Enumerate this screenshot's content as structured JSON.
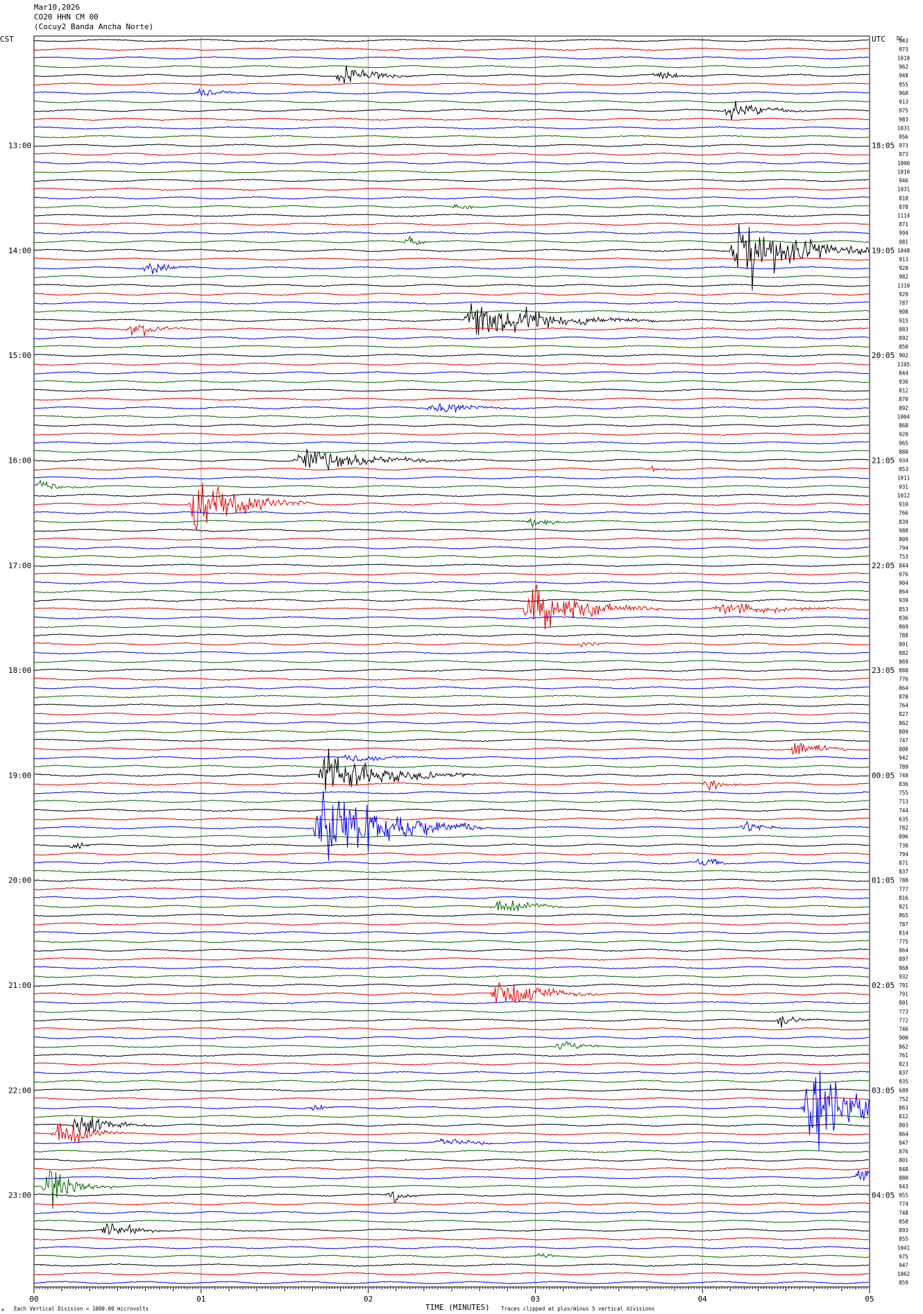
{
  "header": {
    "date": "Mar10,2026",
    "station": "CO20 HHN CM 00",
    "site": "(Cocuy2 Banda Ancha Norte)"
  },
  "left_tz": "CST",
  "right_tz": "UTC",
  "right_top_label": "DC",
  "left_hours": [
    "13:00",
    "14:00",
    "15:00",
    "16:00",
    "17:00",
    "18:00",
    "19:00",
    "20:00",
    "21:00",
    "22:00",
    "23:00"
  ],
  "right_hours": [
    "18:05",
    "19:05",
    "20:05",
    "21:05",
    "22:05",
    "23:05",
    "00:05",
    "01:05",
    "02:05",
    "03:05",
    "04:05"
  ],
  "x_ticks": [
    "00",
    "01",
    "02",
    "03",
    "04",
    "05"
  ],
  "xlabel": "TIME (MINUTES)",
  "footer": {
    "scale_note": "Each Vertical Division = 1000.00 microvolts",
    "clip_note": "Traces clipped at plus/minus 5 vertical divisions",
    "mark": "A"
  },
  "chart_data": {
    "type": "line",
    "title": "",
    "x_range_minutes": [
      0,
      5
    ],
    "trace_colors": [
      "#000000",
      "#e00000",
      "#0000ee",
      "#006600"
    ],
    "dc_offsets": [
      943,
      973,
      1018,
      962,
      948,
      955,
      968,
      913,
      975,
      983,
      1031,
      956,
      973,
      973,
      1000,
      1010,
      946,
      1031,
      818,
      878,
      1114,
      871,
      994,
      981,
      1048,
      913,
      920,
      982,
      1310,
      929,
      787,
      908,
      915,
      883,
      892,
      850,
      902,
      1105,
      844,
      936,
      812,
      870,
      892,
      1004,
      868,
      920,
      965,
      880,
      934,
      853,
      1011,
      931,
      1012,
      910,
      766,
      839,
      988,
      809,
      794,
      753,
      844,
      976,
      904,
      864,
      939,
      853,
      836,
      869,
      788,
      891,
      882,
      869,
      888,
      776,
      864,
      870,
      764,
      827,
      862,
      809,
      747,
      808,
      942,
      789,
      748,
      836,
      755,
      713,
      744,
      635,
      782,
      896,
      730,
      794,
      871,
      837,
      788,
      777,
      816,
      821,
      865,
      787,
      814,
      775,
      864,
      897,
      868,
      932,
      791,
      791,
      801,
      773,
      772,
      746,
      900,
      862,
      761,
      823,
      837,
      835,
      689,
      752,
      863,
      812,
      803,
      864,
      947,
      876,
      801,
      848,
      880,
      943,
      855,
      774,
      748,
      858,
      893,
      855,
      1041,
      975,
      947,
      1062,
      859
    ],
    "events": [
      {
        "trace": 4,
        "minute": 1.85,
        "amp": 0.55,
        "dur": 0.5
      },
      {
        "trace": 4,
        "minute": 3.75,
        "amp": 0.25,
        "dur": 0.3
      },
      {
        "trace": 6,
        "minute": 1.02,
        "amp": 0.35,
        "dur": 0.25
      },
      {
        "trace": 8,
        "minute": 4.18,
        "amp": 0.7,
        "dur": 0.45
      },
      {
        "trace": 19,
        "minute": 2.55,
        "amp": 0.2,
        "dur": 0.3
      },
      {
        "trace": 23,
        "minute": 2.25,
        "amp": 0.3,
        "dur": 0.2
      },
      {
        "trace": 24,
        "minute": 4.22,
        "amp": 2.2,
        "dur": 0.9
      },
      {
        "trace": 26,
        "minute": 0.7,
        "amp": 0.35,
        "dur": 0.3
      },
      {
        "trace": 32,
        "minute": 2.63,
        "amp": 1.2,
        "dur": 1.1
      },
      {
        "trace": 33,
        "minute": 0.6,
        "amp": 0.5,
        "dur": 0.35
      },
      {
        "trace": 42,
        "minute": 2.4,
        "amp": 0.35,
        "dur": 0.6
      },
      {
        "trace": 48,
        "minute": 1.6,
        "amp": 0.8,
        "dur": 1.0
      },
      {
        "trace": 49,
        "minute": 3.7,
        "amp": 0.25,
        "dur": 0.2
      },
      {
        "trace": 51,
        "minute": 0.05,
        "amp": 0.4,
        "dur": 0.25
      },
      {
        "trace": 53,
        "minute": 0.98,
        "amp": 1.6,
        "dur": 0.7
      },
      {
        "trace": 55,
        "minute": 3.0,
        "amp": 0.3,
        "dur": 0.3
      },
      {
        "trace": 65,
        "minute": 2.98,
        "amp": 1.5,
        "dur": 0.8
      },
      {
        "trace": 65,
        "minute": 4.1,
        "amp": 0.4,
        "dur": 0.9
      },
      {
        "trace": 69,
        "minute": 3.3,
        "amp": 0.25,
        "dur": 0.25
      },
      {
        "trace": 81,
        "minute": 4.57,
        "amp": 0.6,
        "dur": 0.35
      },
      {
        "trace": 82,
        "minute": 1.9,
        "amp": 0.3,
        "dur": 0.5
      },
      {
        "trace": 84,
        "minute": 1.75,
        "amp": 1.4,
        "dur": 0.9
      },
      {
        "trace": 85,
        "minute": 4.05,
        "amp": 0.35,
        "dur": 0.25
      },
      {
        "trace": 90,
        "minute": 1.72,
        "amp": 2.6,
        "dur": 1.0
      },
      {
        "trace": 90,
        "minute": 4.28,
        "amp": 0.4,
        "dur": 0.25
      },
      {
        "trace": 92,
        "minute": 0.25,
        "amp": 0.3,
        "dur": 0.15
      },
      {
        "trace": 94,
        "minute": 4.0,
        "amp": 0.3,
        "dur": 0.3
      },
      {
        "trace": 99,
        "minute": 2.78,
        "amp": 0.55,
        "dur": 0.4
      },
      {
        "trace": 109,
        "minute": 2.78,
        "amp": 1.1,
        "dur": 0.6
      },
      {
        "trace": 112,
        "minute": 4.47,
        "amp": 0.55,
        "dur": 0.2
      },
      {
        "trace": 115,
        "minute": 3.15,
        "amp": 0.3,
        "dur": 0.4
      },
      {
        "trace": 122,
        "minute": 4.65,
        "amp": 2.8,
        "dur": 0.6
      },
      {
        "trace": 122,
        "minute": 1.68,
        "amp": 0.35,
        "dur": 0.15
      },
      {
        "trace": 124,
        "minute": 0.28,
        "amp": 0.75,
        "dur": 0.45
      },
      {
        "trace": 125,
        "minute": 0.15,
        "amp": 1.0,
        "dur": 0.4
      },
      {
        "trace": 126,
        "minute": 2.45,
        "amp": 0.35,
        "dur": 0.4
      },
      {
        "trace": 130,
        "minute": 4.95,
        "amp": 0.6,
        "dur": 0.2
      },
      {
        "trace": 131,
        "minute": 0.1,
        "amp": 1.1,
        "dur": 0.4
      },
      {
        "trace": 132,
        "minute": 2.15,
        "amp": 0.4,
        "dur": 0.2
      },
      {
        "trace": 136,
        "minute": 0.45,
        "amp": 0.45,
        "dur": 0.4
      },
      {
        "trace": 139,
        "minute": 3.05,
        "amp": 0.25,
        "dur": 0.1
      }
    ]
  }
}
